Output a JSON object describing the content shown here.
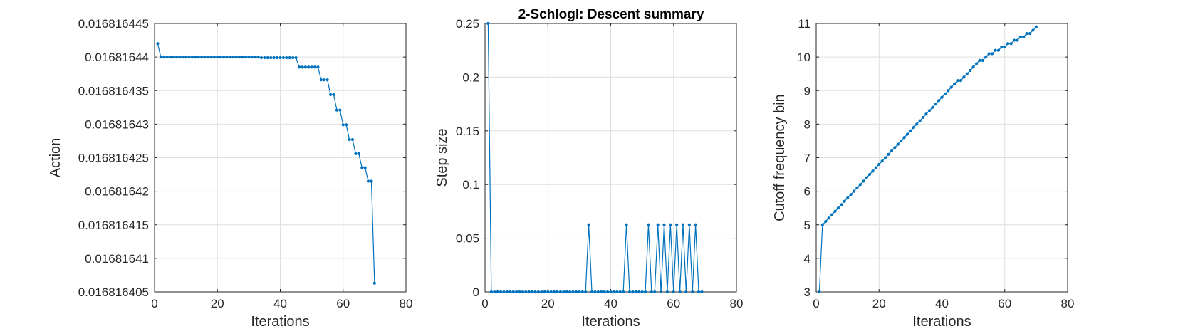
{
  "title": "2-Schlogl: Descent summary",
  "colors": {
    "series": "#0072BD",
    "grid": "#DFDFDF",
    "axis": "#262626",
    "text": "#262626"
  },
  "chart_data": [
    {
      "type": "line",
      "xlabel": "Iterations",
      "ylabel": "Action",
      "xlim": [
        0,
        80
      ],
      "ylim": [
        0.016816405,
        0.016816445
      ],
      "grid": true,
      "xticks": [
        "0",
        "20",
        "40",
        "60",
        "80"
      ],
      "xtick_values": [
        0,
        20,
        40,
        60,
        80
      ],
      "yticks": [
        "0.016816405",
        "0.01681641",
        "0.016816415",
        "0.01681642",
        "0.016816425",
        "0.01681643",
        "0.016816435",
        "0.01681644",
        "0.016816445"
      ],
      "ytick_values": [
        0.016816405,
        0.01681641,
        0.016816415,
        0.01681642,
        0.016816425,
        0.01681643,
        0.016816435,
        0.01681644,
        0.016816445
      ],
      "series": [
        {
          "x": [
            1,
            2,
            3,
            4,
            5,
            6,
            7,
            8,
            9,
            10,
            11,
            12,
            13,
            14,
            15,
            16,
            17,
            18,
            19,
            20,
            21,
            22,
            23,
            24,
            25,
            26,
            27,
            28,
            29,
            30,
            31,
            32,
            33,
            34,
            35,
            36,
            37,
            38,
            39,
            40,
            41,
            42,
            43,
            44,
            45,
            46,
            47,
            48,
            49,
            50,
            51,
            52,
            53,
            54,
            55,
            56,
            57,
            58,
            59,
            60,
            61,
            62,
            63,
            64,
            65,
            66,
            67,
            68,
            69,
            70
          ],
          "y": [
            0.016816442,
            0.01681644,
            0.01681644,
            0.01681644,
            0.01681644,
            0.01681644,
            0.01681644,
            0.01681644,
            0.01681644,
            0.01681644,
            0.01681644,
            0.01681644,
            0.01681644,
            0.01681644,
            0.01681644,
            0.01681644,
            0.01681644,
            0.01681644,
            0.01681644,
            0.01681644,
            0.01681644,
            0.01681644,
            0.01681644,
            0.01681644,
            0.01681644,
            0.01681644,
            0.01681644,
            0.01681644,
            0.01681644,
            0.01681644,
            0.01681644,
            0.01681644,
            0.01681644,
            0.0168164399,
            0.0168164399,
            0.0168164399,
            0.0168164399,
            0.0168164399,
            0.0168164399,
            0.0168164399,
            0.0168164399,
            0.0168164399,
            0.0168164399,
            0.0168164399,
            0.0168164399,
            0.0168164385,
            0.0168164385,
            0.0168164385,
            0.0168164385,
            0.0168164385,
            0.0168164385,
            0.0168164385,
            0.0168164366,
            0.0168164366,
            0.0168164366,
            0.0168164344,
            0.0168164344,
            0.0168164321,
            0.0168164321,
            0.0168164299,
            0.0168164299,
            0.0168164277,
            0.0168164277,
            0.0168164256,
            0.0168164256,
            0.0168164235,
            0.0168164235,
            0.0168164215,
            0.0168164215,
            0.0168164063
          ]
        }
      ]
    },
    {
      "type": "line",
      "xlabel": "Iterations",
      "ylabel": "Step size",
      "xlim": [
        0,
        80
      ],
      "ylim": [
        0,
        0.25
      ],
      "grid": true,
      "xticks": [
        "0",
        "20",
        "40",
        "60",
        "80"
      ],
      "xtick_values": [
        0,
        20,
        40,
        60,
        80
      ],
      "yticks": [
        "0",
        "0.05",
        "0.1",
        "0.15",
        "0.2",
        "0.25"
      ],
      "ytick_values": [
        0,
        0.05,
        0.1,
        0.15,
        0.2,
        0.25
      ],
      "series": [
        {
          "x": [
            1,
            2,
            3,
            4,
            5,
            6,
            7,
            8,
            9,
            10,
            11,
            12,
            13,
            14,
            15,
            16,
            17,
            18,
            19,
            20,
            21,
            22,
            23,
            24,
            25,
            26,
            27,
            28,
            29,
            30,
            31,
            32,
            33,
            34,
            35,
            36,
            37,
            38,
            39,
            40,
            41,
            42,
            43,
            44,
            45,
            46,
            47,
            48,
            49,
            50,
            51,
            52,
            53,
            54,
            55,
            56,
            57,
            58,
            59,
            60,
            61,
            62,
            63,
            64,
            65,
            66,
            67,
            68,
            69
          ],
          "y": [
            0.25,
            0,
            0,
            0,
            0,
            0,
            0,
            0,
            0,
            0,
            0,
            0,
            0,
            0,
            0,
            0,
            0,
            0,
            0,
            0,
            0,
            0,
            0,
            0,
            0,
            0,
            0,
            0,
            0,
            0,
            0,
            0,
            0.0625,
            0,
            0,
            0,
            0,
            0,
            0,
            0,
            0,
            0,
            0,
            0,
            0.0625,
            0,
            0,
            0,
            0,
            0,
            0,
            0.0625,
            0,
            0,
            0.0625,
            0,
            0.0625,
            0,
            0.0625,
            0,
            0.0625,
            0,
            0.0625,
            0,
            0.0625,
            0,
            0.0625,
            0,
            0
          ]
        }
      ]
    },
    {
      "type": "line",
      "xlabel": "Iterations",
      "ylabel": "Cutoff frequency bin",
      "xlim": [
        0,
        80
      ],
      "ylim": [
        3,
        11
      ],
      "grid": true,
      "xticks": [
        "0",
        "20",
        "40",
        "60",
        "80"
      ],
      "xtick_values": [
        0,
        20,
        40,
        60,
        80
      ],
      "yticks": [
        "3",
        "4",
        "5",
        "6",
        "7",
        "8",
        "9",
        "10",
        "11"
      ],
      "ytick_values": [
        3,
        4,
        5,
        6,
        7,
        8,
        9,
        10,
        11
      ],
      "series": [
        {
          "x": [
            1,
            2,
            3,
            4,
            5,
            6,
            7,
            8,
            9,
            10,
            11,
            12,
            13,
            14,
            15,
            16,
            17,
            18,
            19,
            20,
            21,
            22,
            23,
            24,
            25,
            26,
            27,
            28,
            29,
            30,
            31,
            32,
            33,
            34,
            35,
            36,
            37,
            38,
            39,
            40,
            41,
            42,
            43,
            44,
            45,
            46,
            47,
            48,
            49,
            50,
            51,
            52,
            53,
            54,
            55,
            56,
            57,
            58,
            59,
            60,
            61,
            62,
            63,
            64,
            65,
            66,
            67,
            68,
            69,
            70
          ],
          "y": [
            3,
            5,
            5.1,
            5.2,
            5.3,
            5.4,
            5.5,
            5.6,
            5.7,
            5.8,
            5.9,
            6,
            6.1,
            6.2,
            6.3,
            6.4,
            6.5,
            6.6,
            6.7,
            6.8,
            6.9,
            7,
            7.1,
            7.2,
            7.3,
            7.4,
            7.5,
            7.6,
            7.7,
            7.8,
            7.9,
            8,
            8.1,
            8.2,
            8.3,
            8.4,
            8.5,
            8.6,
            8.7,
            8.8,
            8.9,
            9,
            9.1,
            9.2,
            9.3,
            9.3,
            9.4,
            9.5,
            9.6,
            9.7,
            9.8,
            9.9,
            9.9,
            10,
            10.1,
            10.1,
            10.2,
            10.2,
            10.3,
            10.3,
            10.4,
            10.4,
            10.5,
            10.5,
            10.6,
            10.6,
            10.7,
            10.7,
            10.8,
            10.9
          ]
        }
      ]
    }
  ]
}
